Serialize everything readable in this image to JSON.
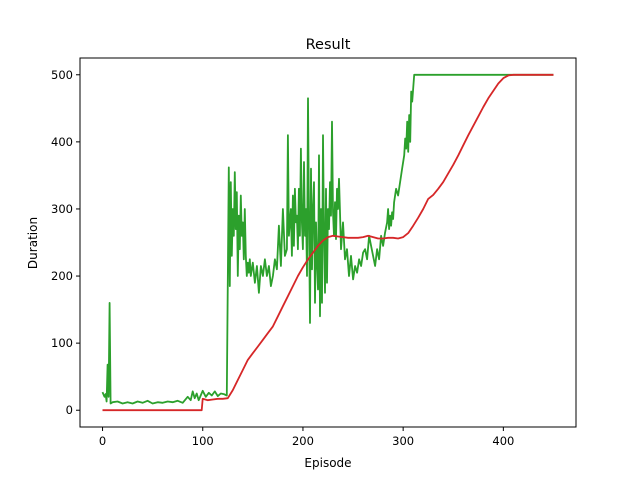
{
  "chart_data": {
    "type": "line",
    "title": "Result",
    "xlabel": "Episode",
    "ylabel": "Duration",
    "xlim": [
      -22.5,
      472.5
    ],
    "ylim": [
      -25,
      525
    ],
    "xticks": [
      0,
      100,
      200,
      300,
      400
    ],
    "yticks": [
      0,
      100,
      200,
      300,
      400,
      500
    ],
    "grid": false,
    "series": [
      {
        "color": "#2ca02c",
        "values": [
          [
            0,
            27
          ],
          [
            2,
            20
          ],
          [
            3,
            24
          ],
          [
            4,
            13
          ],
          [
            5,
            68
          ],
          [
            6,
            20
          ],
          [
            7,
            160
          ],
          [
            8,
            10
          ],
          [
            10,
            12
          ],
          [
            15,
            13
          ],
          [
            20,
            10
          ],
          [
            25,
            12
          ],
          [
            30,
            10
          ],
          [
            35,
            13
          ],
          [
            40,
            11
          ],
          [
            45,
            14
          ],
          [
            50,
            10
          ],
          [
            55,
            12
          ],
          [
            60,
            11
          ],
          [
            65,
            13
          ],
          [
            70,
            12
          ],
          [
            75,
            14
          ],
          [
            80,
            11
          ],
          [
            85,
            20
          ],
          [
            88,
            15
          ],
          [
            90,
            28
          ],
          [
            92,
            18
          ],
          [
            94,
            25
          ],
          [
            96,
            15
          ],
          [
            98,
            22
          ],
          [
            100,
            29
          ],
          [
            103,
            20
          ],
          [
            106,
            26
          ],
          [
            109,
            22
          ],
          [
            112,
            28
          ],
          [
            115,
            21
          ],
          [
            118,
            25
          ],
          [
            121,
            24
          ],
          [
            124,
            22
          ],
          [
            126,
            362
          ],
          [
            127,
            185
          ],
          [
            128,
            340
          ],
          [
            129,
            230
          ],
          [
            130,
            300
          ],
          [
            131,
            260
          ],
          [
            132,
            355
          ],
          [
            133,
            270
          ],
          [
            134,
            325
          ],
          [
            135,
            200
          ],
          [
            136,
            290
          ],
          [
            137,
            240
          ],
          [
            138,
            320
          ],
          [
            139,
            260
          ],
          [
            140,
            280
          ],
          [
            141,
            225
          ],
          [
            142,
            300
          ],
          [
            143,
            230
          ],
          [
            144,
            200
          ],
          [
            145,
            220
          ],
          [
            146,
            205
          ],
          [
            147,
            225
          ],
          [
            148,
            200
          ],
          [
            150,
            220
          ],
          [
            152,
            190
          ],
          [
            154,
            215
          ],
          [
            156,
            175
          ],
          [
            158,
            215
          ],
          [
            160,
            200
          ],
          [
            162,
            225
          ],
          [
            164,
            200
          ],
          [
            166,
            215
          ],
          [
            168,
            185
          ],
          [
            170,
            200
          ],
          [
            172,
            225
          ],
          [
            174,
            210
          ],
          [
            176,
            275
          ],
          [
            178,
            215
          ],
          [
            180,
            300
          ],
          [
            182,
            230
          ],
          [
            184,
            240
          ],
          [
            185,
            410
          ],
          [
            186,
            260
          ],
          [
            188,
            300
          ],
          [
            189,
            230
          ],
          [
            190,
            320
          ],
          [
            191,
            245
          ],
          [
            192,
            330
          ],
          [
            193,
            280
          ],
          [
            194,
            290
          ],
          [
            195,
            240
          ],
          [
            196,
            330
          ],
          [
            197,
            260
          ],
          [
            198,
            390
          ],
          [
            199,
            280
          ],
          [
            200,
            240
          ],
          [
            201,
            370
          ],
          [
            202,
            260
          ],
          [
            203,
            300
          ],
          [
            204,
            200
          ],
          [
            205,
            465
          ],
          [
            206,
            280
          ],
          [
            207,
            130
          ],
          [
            208,
            360
          ],
          [
            209,
            210
          ],
          [
            210,
            300
          ],
          [
            211,
            340
          ],
          [
            212,
            160
          ],
          [
            213,
            280
          ],
          [
            214,
            220
          ],
          [
            215,
            180
          ],
          [
            216,
            380
          ],
          [
            217,
            140
          ],
          [
            218,
            300
          ],
          [
            219,
            160
          ],
          [
            220,
            410
          ],
          [
            221,
            260
          ],
          [
            222,
            175
          ],
          [
            223,
            330
          ],
          [
            224,
            190
          ],
          [
            225,
            300
          ],
          [
            226,
            270
          ],
          [
            227,
            340
          ],
          [
            228,
            290
          ],
          [
            229,
            430
          ],
          [
            230,
            295
          ],
          [
            231,
            260
          ],
          [
            232,
            310
          ],
          [
            233,
            255
          ],
          [
            234,
            330
          ],
          [
            235,
            300
          ],
          [
            236,
            345
          ],
          [
            237,
            295
          ],
          [
            238,
            240
          ],
          [
            240,
            280
          ],
          [
            242,
            225
          ],
          [
            244,
            240
          ],
          [
            246,
            200
          ],
          [
            248,
            230
          ],
          [
            250,
            195
          ],
          [
            252,
            215
          ],
          [
            254,
            205
          ],
          [
            256,
            225
          ],
          [
            258,
            215
          ],
          [
            260,
            235
          ],
          [
            262,
            240
          ],
          [
            264,
            225
          ],
          [
            266,
            260
          ],
          [
            268,
            245
          ],
          [
            270,
            230
          ],
          [
            272,
            215
          ],
          [
            274,
            240
          ],
          [
            276,
            225
          ],
          [
            278,
            260
          ],
          [
            280,
            245
          ],
          [
            282,
            265
          ],
          [
            284,
            280
          ],
          [
            285,
            300
          ],
          [
            286,
            270
          ],
          [
            287,
            290
          ],
          [
            288,
            275
          ],
          [
            289,
            295
          ],
          [
            290,
            285
          ],
          [
            291,
            310
          ],
          [
            293,
            330
          ],
          [
            295,
            320
          ],
          [
            297,
            340
          ],
          [
            299,
            360
          ],
          [
            301,
            380
          ],
          [
            302,
            405
          ],
          [
            303,
            390
          ],
          [
            304,
            430
          ],
          [
            305,
            385
          ],
          [
            306,
            440
          ],
          [
            307,
            400
          ],
          [
            308,
            475
          ],
          [
            309,
            460
          ],
          [
            310,
            480
          ],
          [
            311,
            500
          ],
          [
            330,
            500
          ],
          [
            360,
            500
          ],
          [
            400,
            500
          ],
          [
            450,
            500
          ]
        ]
      },
      {
        "color": "#d62728",
        "values": [
          [
            0,
            0
          ],
          [
            50,
            0
          ],
          [
            98,
            0
          ],
          [
            99,
            0
          ],
          [
            100,
            17
          ],
          [
            105,
            15
          ],
          [
            110,
            16
          ],
          [
            115,
            17
          ],
          [
            120,
            17
          ],
          [
            125,
            18
          ],
          [
            130,
            30
          ],
          [
            135,
            45
          ],
          [
            140,
            60
          ],
          [
            145,
            75
          ],
          [
            150,
            85
          ],
          [
            155,
            95
          ],
          [
            160,
            105
          ],
          [
            165,
            115
          ],
          [
            170,
            125
          ],
          [
            175,
            140
          ],
          [
            180,
            155
          ],
          [
            185,
            170
          ],
          [
            190,
            185
          ],
          [
            195,
            200
          ],
          [
            200,
            213
          ],
          [
            205,
            225
          ],
          [
            210,
            235
          ],
          [
            215,
            245
          ],
          [
            220,
            253
          ],
          [
            225,
            258
          ],
          [
            230,
            260
          ],
          [
            235,
            259
          ],
          [
            240,
            258
          ],
          [
            245,
            257
          ],
          [
            250,
            257
          ],
          [
            255,
            257
          ],
          [
            260,
            258
          ],
          [
            265,
            260
          ],
          [
            270,
            258
          ],
          [
            275,
            256
          ],
          [
            280,
            256
          ],
          [
            285,
            257
          ],
          [
            290,
            257
          ],
          [
            295,
            256
          ],
          [
            300,
            258
          ],
          [
            305,
            264
          ],
          [
            310,
            275
          ],
          [
            315,
            287
          ],
          [
            320,
            300
          ],
          [
            325,
            315
          ],
          [
            330,
            321
          ],
          [
            335,
            330
          ],
          [
            340,
            340
          ],
          [
            345,
            353
          ],
          [
            350,
            366
          ],
          [
            355,
            380
          ],
          [
            360,
            395
          ],
          [
            365,
            410
          ],
          [
            370,
            424
          ],
          [
            375,
            438
          ],
          [
            380,
            452
          ],
          [
            385,
            465
          ],
          [
            390,
            476
          ],
          [
            395,
            487
          ],
          [
            400,
            495
          ],
          [
            405,
            499
          ],
          [
            410,
            500
          ],
          [
            420,
            500
          ],
          [
            430,
            500
          ],
          [
            440,
            500
          ],
          [
            450,
            500
          ]
        ]
      }
    ]
  }
}
